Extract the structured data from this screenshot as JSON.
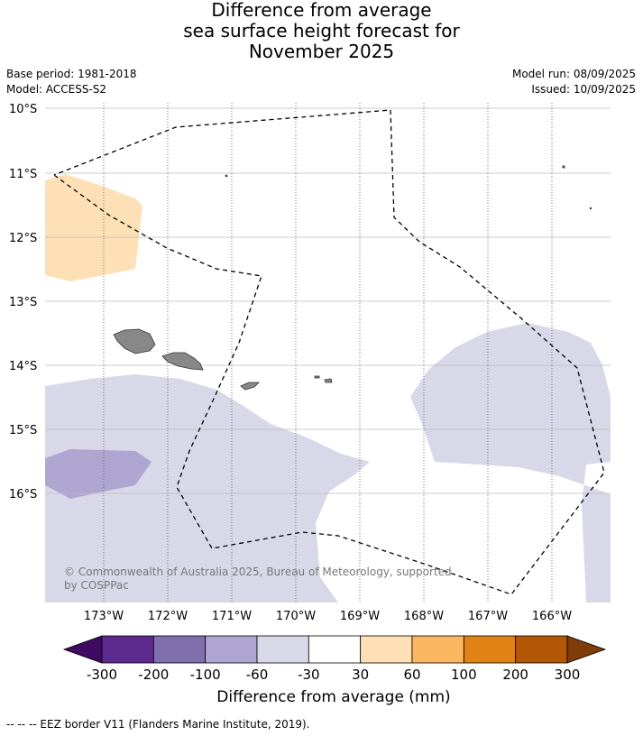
{
  "title": {
    "line1": "Difference from average",
    "line2": "sea surface height forecast for",
    "line3": "November 2025"
  },
  "meta": {
    "base_period": "Base period: 1981-2018",
    "model": "Model: ACCESS-S2",
    "model_run": "Model run: 08/09/2025",
    "issued": "Issued: 10/09/2025"
  },
  "map": {
    "lon_labels": [
      "173°W",
      "172°W",
      "171°W",
      "170°W",
      "169°W",
      "168°W",
      "167°W",
      "166°W"
    ],
    "lat_labels": [
      "10°S",
      "11°S",
      "12°S",
      "13°S",
      "14°S",
      "15°S",
      "16°S"
    ],
    "copyright_line1": "© Commonwealth of Australia 2025, Bureau of Meteorology, supported",
    "copyright_line2": "by COSPPac",
    "land_color": "#888888"
  },
  "colorbar": {
    "ticks": [
      "-300",
      "-200",
      "-100",
      "-60",
      "-30",
      "30",
      "60",
      "100",
      "200",
      "300"
    ],
    "label": "Difference from average (mm)",
    "colors": [
      "#3f0a63",
      "#5c2a8e",
      "#7f6fac",
      "#aea6d0",
      "#d8d8e9",
      "#ffffff",
      "#fde0b6",
      "#fbb660",
      "#e08214",
      "#b35806",
      "#7f3b08"
    ]
  },
  "footer": {
    "legend_text": "-- -- -- EEZ border V11 (Flanders Marine Institute, 2019)."
  }
}
